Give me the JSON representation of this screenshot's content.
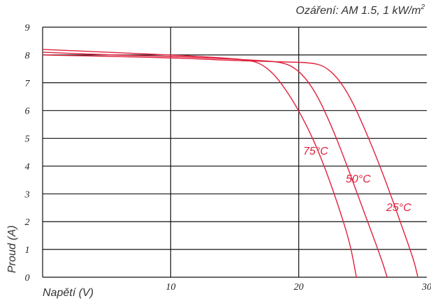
{
  "chart_data": {
    "type": "line",
    "title": "",
    "annotation": {
      "prefix": "Ozáření: AM 1.5, 1 kW/m",
      "superscript": "2"
    },
    "xlabel": "Napětí (V)",
    "ylabel": "Proud (A)",
    "xlim": [
      0,
      30
    ],
    "ylim": [
      0,
      9
    ],
    "x_ticks": [
      "10",
      "20",
      "30"
    ],
    "y_ticks": [
      "0",
      "1",
      "2",
      "3",
      "4",
      "5",
      "6",
      "7",
      "8",
      "9"
    ],
    "grid": true,
    "line_color": "#e0203c",
    "series": [
      {
        "name": "75°C",
        "points": [
          [
            0,
            8.2
          ],
          [
            5,
            8.1
          ],
          [
            10,
            8.0
          ],
          [
            14,
            7.9
          ],
          [
            16,
            7.82
          ],
          [
            17,
            7.7
          ],
          [
            18,
            7.35
          ],
          [
            19,
            6.75
          ],
          [
            20,
            6.0
          ],
          [
            21,
            5.1
          ],
          [
            22,
            4.0
          ],
          [
            23,
            2.7
          ],
          [
            24,
            1.25
          ],
          [
            24.5,
            0
          ]
        ]
      },
      {
        "name": "50°C",
        "points": [
          [
            0,
            8.1
          ],
          [
            5,
            8.0
          ],
          [
            10,
            7.95
          ],
          [
            15,
            7.85
          ],
          [
            17,
            7.8
          ],
          [
            18.5,
            7.75
          ],
          [
            19.5,
            7.6
          ],
          [
            20.5,
            7.2
          ],
          [
            21.5,
            6.5
          ],
          [
            22.5,
            5.5
          ],
          [
            23.5,
            4.35
          ],
          [
            24.5,
            3.1
          ],
          [
            25.5,
            1.85
          ],
          [
            26.5,
            0.6
          ],
          [
            26.9,
            0
          ]
        ]
      },
      {
        "name": "25°C",
        "points": [
          [
            0,
            8.0
          ],
          [
            5,
            7.95
          ],
          [
            10,
            7.9
          ],
          [
            15,
            7.8
          ],
          [
            19,
            7.75
          ],
          [
            21,
            7.72
          ],
          [
            22,
            7.6
          ],
          [
            23,
            7.2
          ],
          [
            24,
            6.5
          ],
          [
            25,
            5.5
          ],
          [
            26,
            4.4
          ],
          [
            27,
            3.2
          ],
          [
            28,
            1.9
          ],
          [
            29,
            0.6
          ],
          [
            29.3,
            0
          ]
        ]
      }
    ]
  }
}
